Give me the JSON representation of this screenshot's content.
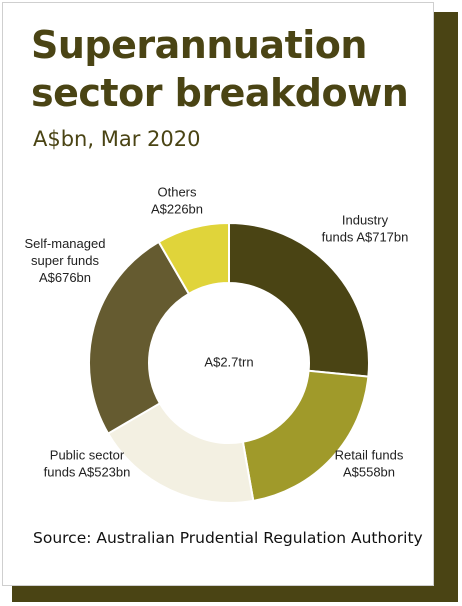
{
  "title_lines": [
    "Superannuation",
    "sector breakdown"
  ],
  "subtitle": "A$bn, Mar 2020",
  "source": "Source: Australian Prudential Regulation Authority",
  "chart_data": {
    "type": "pie",
    "donut": true,
    "center_label": "A$2.7trn",
    "slices": [
      {
        "label_lines": [
          "Industry",
          "funds A$717bn"
        ],
        "value": 717,
        "color": "#4a4414"
      },
      {
        "label_lines": [
          "Retail funds",
          "A$558bn"
        ],
        "value": 558,
        "color": "#a09a2a"
      },
      {
        "label_lines": [
          "Public sector",
          "funds A$523bn"
        ],
        "value": 523,
        "color": "#f3f0e2"
      },
      {
        "label_lines": [
          "Self-managed",
          "super funds",
          "A$676bn"
        ],
        "value": 676,
        "color": "#655b30"
      },
      {
        "label_lines": [
          "Others",
          "A$226bn"
        ],
        "value": 226,
        "color": "#e0d43a"
      }
    ]
  }
}
